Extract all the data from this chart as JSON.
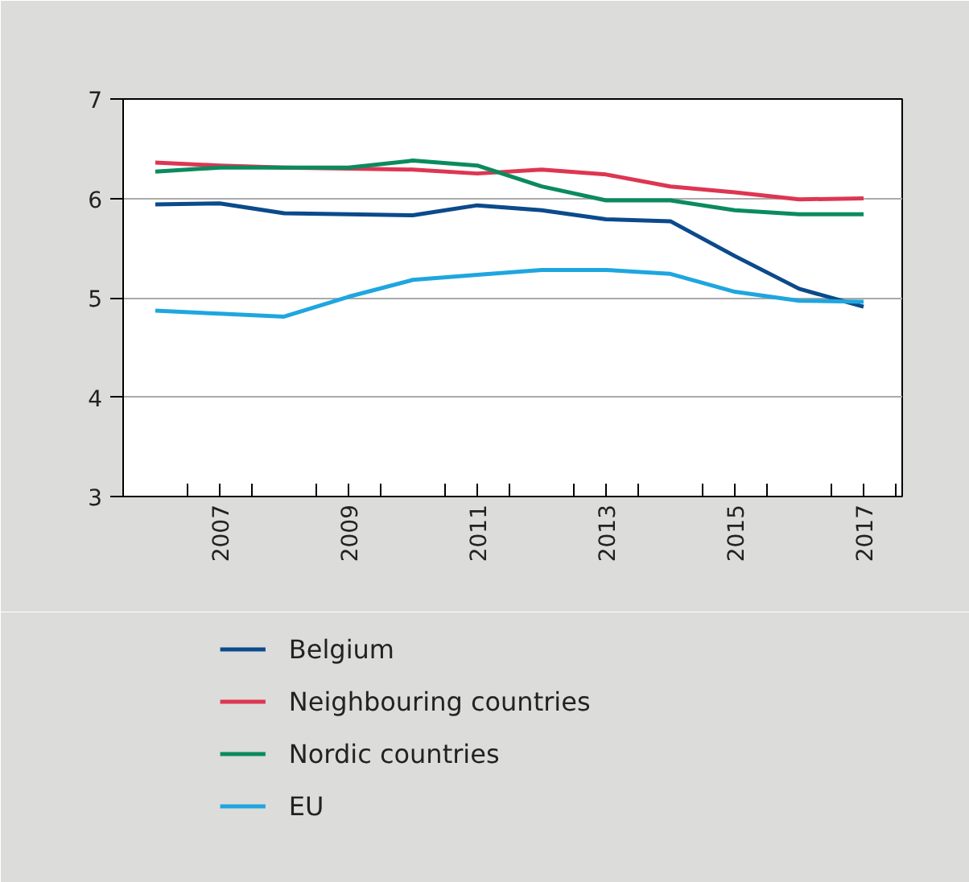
{
  "chart_data": {
    "type": "line",
    "x": [
      2006,
      2007,
      2008,
      2009,
      2010,
      2011,
      2012,
      2013,
      2014,
      2015,
      2016,
      2017
    ],
    "series": [
      {
        "name": "Belgium",
        "color": "#0b4a8b",
        "values": [
          5.94,
          5.95,
          5.85,
          5.84,
          5.83,
          5.93,
          5.88,
          5.79,
          5.77,
          5.42,
          5.09,
          4.91
        ]
      },
      {
        "name": "Neighbouring countries",
        "color": "#dd3652",
        "values": [
          6.36,
          6.33,
          6.31,
          6.3,
          6.29,
          6.25,
          6.29,
          6.24,
          6.12,
          6.06,
          5.99,
          6.0
        ]
      },
      {
        "name": "Nordic countries",
        "color": "#0a8b5e",
        "values": [
          6.27,
          6.31,
          6.31,
          6.31,
          6.38,
          6.33,
          6.12,
          5.98,
          5.98,
          5.88,
          5.84,
          5.84
        ]
      },
      {
        "name": "EU",
        "color": "#1ea6df",
        "values": [
          4.87,
          4.84,
          4.81,
          5.01,
          5.18,
          5.23,
          5.28,
          5.28,
          5.24,
          5.06,
          4.97,
          4.96
        ]
      }
    ],
    "xlim": [
      2005.5,
      2017.6
    ],
    "xticks": [
      {
        "value": 2006.5,
        "label": null
      },
      {
        "value": 2007,
        "label": "2007"
      },
      {
        "value": 2007.5,
        "label": null
      },
      {
        "value": 2008.5,
        "label": null
      },
      {
        "value": 2009,
        "label": "2009"
      },
      {
        "value": 2009.5,
        "label": null
      },
      {
        "value": 2010.5,
        "label": null
      },
      {
        "value": 2011,
        "label": "2011"
      },
      {
        "value": 2011.5,
        "label": null
      },
      {
        "value": 2012.5,
        "label": null
      },
      {
        "value": 2013,
        "label": "2013"
      },
      {
        "value": 2013.5,
        "label": null
      },
      {
        "value": 2014.5,
        "label": null
      },
      {
        "value": 2015,
        "label": "2015"
      },
      {
        "value": 2015.5,
        "label": null
      },
      {
        "value": 2016.5,
        "label": null
      },
      {
        "value": 2017,
        "label": "2017"
      },
      {
        "value": 2017.5,
        "label": null
      }
    ],
    "ylim": [
      3,
      7
    ],
    "yticks": [
      3,
      4,
      5,
      6,
      7
    ],
    "grid": "y",
    "legend": "bottom",
    "line_style": "solid",
    "marker": "none"
  }
}
